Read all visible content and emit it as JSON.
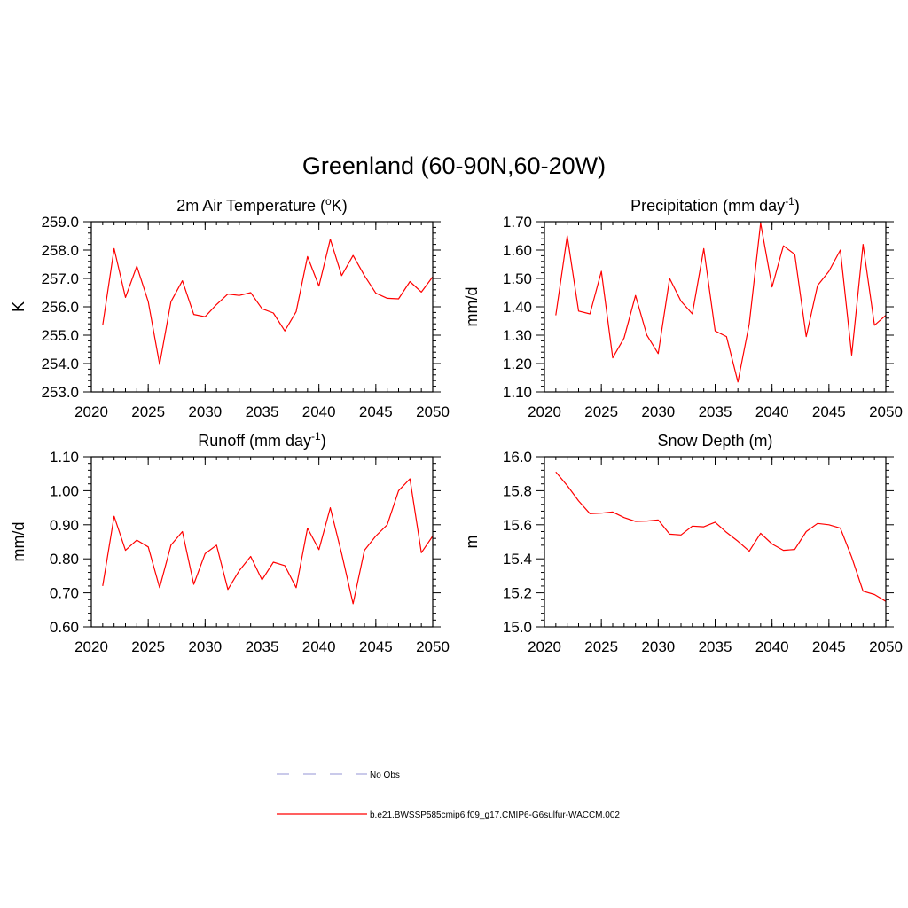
{
  "figure": {
    "title": "Greenland (60-90N,60-20W)"
  },
  "legend": {
    "placement": "bottom-center",
    "entries": [
      {
        "label": "No Obs",
        "color": "#aaaadd",
        "style": "dashed"
      },
      {
        "label": "b.e21.BWSSP585cmip6.f09_g17.CMIP6-G6sulfur-WACCM.002",
        "color": "#ff0000",
        "style": "solid"
      }
    ]
  },
  "chart_data": [
    {
      "type": "line",
      "title": "2m Air Temperature (",
      "title_sup": "o",
      "title_tail": "K)",
      "xlabel": "",
      "ylabel": "K",
      "xlim": [
        2020,
        2050
      ],
      "ylim": [
        253.0,
        259.0
      ],
      "x_ticks": [
        "2020",
        "2025",
        "2030",
        "2035",
        "2040",
        "2045",
        "2050"
      ],
      "y_ticks": [
        "253.0",
        "254.0",
        "255.0",
        "256.0",
        "257.0",
        "258.0",
        "259.0"
      ],
      "grid": false,
      "color": "#ff0000",
      "x": [
        2021,
        2022,
        2023,
        2024,
        2025,
        2026,
        2027,
        2028,
        2029,
        2030,
        2031,
        2032,
        2033,
        2034,
        2035,
        2036,
        2037,
        2038,
        2039,
        2040,
        2041,
        2042,
        2043,
        2044,
        2045,
        2046,
        2047,
        2048,
        2049,
        2050
      ],
      "values": [
        255.35,
        258.05,
        256.33,
        257.43,
        256.18,
        253.97,
        256.18,
        256.92,
        255.73,
        255.65,
        256.08,
        256.45,
        256.4,
        256.5,
        255.93,
        255.78,
        255.15,
        255.83,
        257.77,
        256.73,
        258.38,
        257.1,
        257.81,
        257.1,
        256.48,
        256.3,
        256.28,
        256.89,
        256.52,
        257.06
      ]
    },
    {
      "type": "line",
      "title": "Precipitation (mm day",
      "title_sup": "-1",
      "title_tail": ")",
      "xlabel": "",
      "ylabel": "mm/d",
      "xlim": [
        2020,
        2050
      ],
      "ylim": [
        1.1,
        1.7
      ],
      "x_ticks": [
        "2020",
        "2025",
        "2030",
        "2035",
        "2040",
        "2045",
        "2050"
      ],
      "y_ticks": [
        "1.10",
        "1.20",
        "1.30",
        "1.40",
        "1.50",
        "1.60",
        "1.70"
      ],
      "grid": false,
      "color": "#ff0000",
      "x": [
        2021,
        2022,
        2023,
        2024,
        2025,
        2026,
        2027,
        2028,
        2029,
        2030,
        2031,
        2032,
        2033,
        2034,
        2035,
        2036,
        2037,
        2038,
        2039,
        2040,
        2041,
        2042,
        2043,
        2044,
        2045,
        2046,
        2047,
        2048,
        2049,
        2050
      ],
      "values": [
        1.37,
        1.65,
        1.385,
        1.375,
        1.525,
        1.22,
        1.29,
        1.44,
        1.3,
        1.235,
        1.5,
        1.42,
        1.375,
        1.605,
        1.315,
        1.295,
        1.135,
        1.34,
        1.695,
        1.47,
        1.615,
        1.585,
        1.295,
        1.475,
        1.525,
        1.6,
        1.23,
        1.62,
        1.335,
        1.37
      ]
    },
    {
      "type": "line",
      "title": "Runoff (mm day",
      "title_sup": "-1",
      "title_tail": ")",
      "xlabel": "",
      "ylabel": "mm/d",
      "xlim": [
        2020,
        2050
      ],
      "ylim": [
        0.6,
        1.1
      ],
      "x_ticks": [
        "2020",
        "2025",
        "2030",
        "2035",
        "2040",
        "2045",
        "2050"
      ],
      "y_ticks": [
        "0.60",
        "0.70",
        "0.80",
        "0.90",
        "1.00",
        "1.10"
      ],
      "grid": false,
      "color": "#ff0000",
      "x": [
        2021,
        2022,
        2023,
        2024,
        2025,
        2026,
        2027,
        2028,
        2029,
        2030,
        2031,
        2032,
        2033,
        2034,
        2035,
        2036,
        2037,
        2038,
        2039,
        2040,
        2041,
        2042,
        2043,
        2044,
        2045,
        2046,
        2047,
        2048,
        2049,
        2050
      ],
      "values": [
        0.72,
        0.925,
        0.825,
        0.855,
        0.835,
        0.715,
        0.84,
        0.88,
        0.725,
        0.815,
        0.84,
        0.71,
        0.765,
        0.807,
        0.738,
        0.79,
        0.78,
        0.715,
        0.89,
        0.827,
        0.95,
        0.815,
        0.668,
        0.825,
        0.867,
        0.9,
        1.0,
        1.035,
        0.818,
        0.867
      ]
    },
    {
      "type": "line",
      "title": "Snow Depth (m)",
      "title_sup": "",
      "title_tail": "",
      "xlabel": "",
      "ylabel": "m",
      "xlim": [
        2020,
        2050
      ],
      "ylim": [
        15.0,
        16.0
      ],
      "x_ticks": [
        "2020",
        "2025",
        "2030",
        "2035",
        "2040",
        "2045",
        "2050"
      ],
      "y_ticks": [
        "15.0",
        "15.2",
        "15.4",
        "15.6",
        "15.8",
        "16.0"
      ],
      "grid": false,
      "color": "#ff0000",
      "x": [
        2021,
        2022,
        2023,
        2024,
        2025,
        2026,
        2027,
        2028,
        2029,
        2030,
        2031,
        2032,
        2033,
        2034,
        2035,
        2036,
        2037,
        2038,
        2039,
        2040,
        2041,
        2042,
        2043,
        2044,
        2045,
        2046,
        2047,
        2048,
        2049,
        2050
      ],
      "values": [
        15.91,
        15.83,
        15.74,
        15.665,
        15.668,
        15.675,
        15.642,
        15.62,
        15.622,
        15.628,
        15.545,
        15.54,
        15.592,
        15.588,
        15.615,
        15.555,
        15.503,
        15.445,
        15.55,
        15.487,
        15.45,
        15.455,
        15.56,
        15.608,
        15.6,
        15.58,
        15.41,
        15.21,
        15.19,
        15.15
      ]
    }
  ]
}
